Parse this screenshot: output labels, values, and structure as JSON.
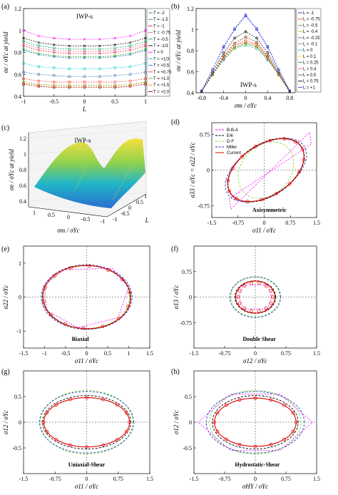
{
  "panel_labels": [
    "(a)",
    "(b)",
    "(c)",
    "(d)",
    "(e)",
    "(f)",
    "(g)",
    "(h)"
  ],
  "chart_data": [
    {
      "panel": "(a)",
      "type": "line",
      "annotation": "IWP-s",
      "xlabel": "L",
      "ylabel": "σe / σYc at yield",
      "xlim": [
        -1,
        1
      ],
      "ylim": [
        0.4,
        1.2
      ],
      "xticks": [
        "-1",
        "-0.5",
        "0",
        "0.5",
        "1"
      ],
      "yticks": [
        "0.4",
        "0.6",
        "0.8",
        "1",
        "1.2"
      ],
      "x": [
        -1,
        -0.75,
        -0.5,
        -0.25,
        0,
        0.25,
        0.5,
        0.75,
        1
      ],
      "legend_position": "right",
      "series": [
        {
          "name": "T = -2",
          "color": "#1f77b4",
          "marker": "x",
          "values": [
            0.82,
            0.78,
            0.76,
            0.75,
            0.75,
            0.75,
            0.76,
            0.78,
            0.82
          ]
        },
        {
          "name": "T = -1.5",
          "color": "#2ca02c",
          "marker": "x",
          "values": [
            0.83,
            0.79,
            0.77,
            0.76,
            0.76,
            0.76,
            0.77,
            0.79,
            0.83
          ]
        },
        {
          "name": "T = -1",
          "color": "#d62728",
          "marker": "x",
          "values": [
            0.86,
            0.82,
            0.8,
            0.79,
            0.79,
            0.79,
            0.8,
            0.82,
            0.86
          ]
        },
        {
          "name": "T = -0.75",
          "color": "#ff4fa0",
          "marker": "x",
          "values": [
            0.88,
            0.84,
            0.82,
            0.81,
            0.81,
            0.81,
            0.82,
            0.84,
            0.88
          ]
        },
        {
          "name": "T = -0.5",
          "color": "#00b050",
          "marker": "o",
          "values": [
            0.9,
            0.86,
            0.84,
            0.83,
            0.83,
            0.83,
            0.84,
            0.86,
            0.9
          ]
        },
        {
          "name": "T = -1/3",
          "color": "#000000",
          "marker": "x",
          "values": [
            0.93,
            0.89,
            0.87,
            0.86,
            0.86,
            0.86,
            0.87,
            0.89,
            0.93
          ]
        },
        {
          "name": "T = 0",
          "color": "#ff00ff",
          "marker": "x",
          "values": [
            1.0,
            0.95,
            0.93,
            0.92,
            0.92,
            0.92,
            0.93,
            0.95,
            1.0
          ]
        },
        {
          "name": "T = +1/3",
          "color": "#00c8c8",
          "marker": "o",
          "values": [
            0.7,
            0.67,
            0.66,
            0.65,
            0.65,
            0.65,
            0.66,
            0.67,
            0.7
          ]
        },
        {
          "name": "T = +0.5",
          "color": "#2e75b6",
          "marker": "o",
          "values": [
            0.62,
            0.6,
            0.59,
            0.58,
            0.58,
            0.58,
            0.59,
            0.6,
            0.62
          ]
        },
        {
          "name": "T = +0.75",
          "color": "#ff3030",
          "marker": "o",
          "values": [
            0.56,
            0.54,
            0.53,
            0.53,
            0.53,
            0.53,
            0.53,
            0.54,
            0.56
          ]
        },
        {
          "name": "T = +1.0",
          "color": "#70ad47",
          "marker": "o",
          "values": [
            0.53,
            0.51,
            0.5,
            0.5,
            0.5,
            0.5,
            0.5,
            0.51,
            0.53
          ]
        },
        {
          "name": "T = +1.5",
          "color": "#ff8c00",
          "marker": "o",
          "values": [
            0.52,
            0.5,
            0.49,
            0.49,
            0.49,
            0.49,
            0.49,
            0.5,
            0.52
          ]
        },
        {
          "name": "T = +2.0",
          "color": "#8b0000",
          "marker": "o",
          "values": [
            0.51,
            0.49,
            0.48,
            0.48,
            0.48,
            0.48,
            0.48,
            0.49,
            0.51
          ]
        }
      ]
    },
    {
      "panel": "(b)",
      "type": "line",
      "annotation": "IWP-s",
      "xlabel": "σm / σYc",
      "ylabel": "σe / σYc at yield",
      "xlim": [
        -0.9,
        0.9
      ],
      "ylim": [
        0.4,
        1.2
      ],
      "xticks": [
        "-0.8",
        "-0.4",
        "0",
        "0.4",
        "0.8"
      ],
      "yticks": [
        "0.4",
        "0.6",
        "0.8",
        "1",
        "1.2"
      ],
      "x": [
        -0.8,
        -0.6,
        -0.4,
        -0.2,
        0,
        0.2,
        0.4,
        0.6,
        0.8
      ],
      "legend_position": "right",
      "series": [
        {
          "name": "L = -1",
          "color": "#1f3fbf",
          "values": [
            0.42,
            0.62,
            0.84,
            1.01,
            1.14,
            1.01,
            0.84,
            0.62,
            0.42
          ]
        },
        {
          "name": "L = -0.75",
          "color": "#ff4500",
          "values": [
            0.41,
            0.58,
            0.74,
            0.85,
            0.88,
            0.86,
            0.74,
            0.58,
            0.41
          ]
        },
        {
          "name": "L = -0.5",
          "color": "#808080",
          "values": [
            0.41,
            0.58,
            0.75,
            0.87,
            0.93,
            0.88,
            0.75,
            0.58,
            0.41
          ]
        },
        {
          "name": "L = -0.4",
          "color": "#daa520",
          "values": [
            0.41,
            0.58,
            0.73,
            0.85,
            0.9,
            0.86,
            0.73,
            0.58,
            0.41
          ]
        },
        {
          "name": "L = -0.25",
          "color": "#4472c4",
          "values": [
            0.41,
            0.57,
            0.72,
            0.83,
            0.87,
            0.84,
            0.72,
            0.57,
            0.41
          ]
        },
        {
          "name": "L = -0.1",
          "color": "#70ad47",
          "values": [
            0.41,
            0.57,
            0.72,
            0.82,
            0.86,
            0.83,
            0.72,
            0.57,
            0.41
          ]
        },
        {
          "name": "L = 0",
          "color": "#00bfff",
          "values": [
            0.41,
            0.57,
            0.71,
            0.82,
            0.85,
            0.82,
            0.71,
            0.57,
            0.41
          ]
        },
        {
          "name": "L = 0.1",
          "color": "#ffd700",
          "values": [
            0.41,
            0.57,
            0.72,
            0.82,
            0.86,
            0.83,
            0.72,
            0.57,
            0.41
          ]
        },
        {
          "name": "L = 0.25",
          "color": "#2e8b57",
          "values": [
            0.41,
            0.57,
            0.72,
            0.83,
            0.87,
            0.84,
            0.72,
            0.57,
            0.41
          ]
        },
        {
          "name": "L = 0.4",
          "color": "#ff6347",
          "values": [
            0.41,
            0.58,
            0.73,
            0.85,
            0.9,
            0.86,
            0.73,
            0.58,
            0.41
          ]
        },
        {
          "name": "L = 0.5",
          "color": "#8b4513",
          "values": [
            0.41,
            0.58,
            0.75,
            0.87,
            0.93,
            0.88,
            0.75,
            0.58,
            0.41
          ]
        },
        {
          "name": "L = 0.75",
          "color": "#000000",
          "values": [
            0.41,
            0.6,
            0.78,
            0.92,
            0.98,
            0.92,
            0.78,
            0.6,
            0.41
          ]
        },
        {
          "name": "L = +1",
          "color": "#4040ff",
          "values": [
            0.42,
            0.62,
            0.83,
            1.0,
            1.13,
            1.0,
            0.83,
            0.62,
            0.42
          ]
        }
      ]
    },
    {
      "panel": "(c)",
      "type": "surface",
      "annotation": "IWP-s",
      "xlabel": "σm / σYc",
      "ylabel": "L",
      "zlabel": "σe / σYc at yield",
      "zticks": [
        "0.4",
        "0.6",
        "0.8",
        "1",
        "1.2"
      ],
      "xticks": [
        "1",
        "0.5",
        "0",
        "-0.5",
        "-1"
      ],
      "yticks": [
        "-1",
        "-0.5",
        "0",
        "0.5",
        "1"
      ]
    },
    {
      "panel": "(d)",
      "type": "line",
      "annotation": "Axisymmetric",
      "xlabel": "σ11 / σYc",
      "ylabel": "σ33 / σYc = σ22 / σYc",
      "xlim": [
        -1.5,
        1.5
      ],
      "ylim": [
        -1.0,
        1.0
      ],
      "xticks": [
        "-1.5",
        "-0.75",
        "0",
        "0.75",
        "1.5"
      ],
      "yticks": [
        "-0.75",
        "0",
        "0.75"
      ],
      "legend_position": "top-left",
      "series": [
        {
          "name": "B-B-A",
          "color": "#ff00ff",
          "style": "dashed"
        },
        {
          "name": "E4l",
          "color": "#000000",
          "style": "dashed"
        },
        {
          "name": "D-F",
          "color": "#7fdc3c",
          "style": "dashed"
        },
        {
          "name": "Miller",
          "color": "#1f3fbf",
          "style": "dashed"
        },
        {
          "name": "Current",
          "color": "#e00000",
          "style": "solid"
        }
      ]
    },
    {
      "panel": "(e)",
      "type": "line",
      "annotation": "Biaxial",
      "xlabel": "σ11 / σYc",
      "ylabel": "σ22 / σYc",
      "xlim": [
        -1.5,
        1.5
      ],
      "ylim": [
        -1.5,
        1.5
      ],
      "xticks": [
        "-1.5",
        "-1",
        "-0.5",
        "0",
        "0.5",
        "1",
        "1.5"
      ],
      "yticks": [
        "-1",
        "0",
        "1"
      ]
    },
    {
      "panel": "(f)",
      "type": "line",
      "annotation": "Double Shear",
      "xlabel": "σ12 / σYc",
      "ylabel": "σ13 / σYc",
      "xlim": [
        -1.5,
        1.5
      ],
      "ylim": [
        -1.5,
        1.5
      ],
      "xticks": [
        "-1.5",
        "-0.75",
        "0",
        "0.75",
        "1.5"
      ],
      "yticks": [
        "-0.75",
        "0",
        "0.75"
      ]
    },
    {
      "panel": "(g)",
      "type": "line",
      "annotation": "Uniaxial-Shear",
      "xlabel": "σ11 / σYc",
      "ylabel": "σ12 / σYc",
      "xlim": [
        -1.5,
        1.5
      ],
      "ylim": [
        -1.0,
        1.0
      ],
      "xticks": [
        "-1.5",
        "-0.75",
        "0",
        "0.75",
        "1.5"
      ],
      "yticks": [
        "-0.5",
        "0",
        "0.5"
      ]
    },
    {
      "panel": "(h)",
      "type": "line",
      "annotation": "Hydrostatic-Shear",
      "xlabel": "σHY / σYc",
      "ylabel": "σ12 / σYc",
      "xlim": [
        -1.5,
        1.5
      ],
      "ylim": [
        -1.0,
        1.0
      ],
      "xticks": [
        "-1.5",
        "-0.75",
        "0",
        "0.75",
        "1.5"
      ],
      "yticks": [
        "-0.5",
        "0",
        "0.5"
      ]
    }
  ]
}
